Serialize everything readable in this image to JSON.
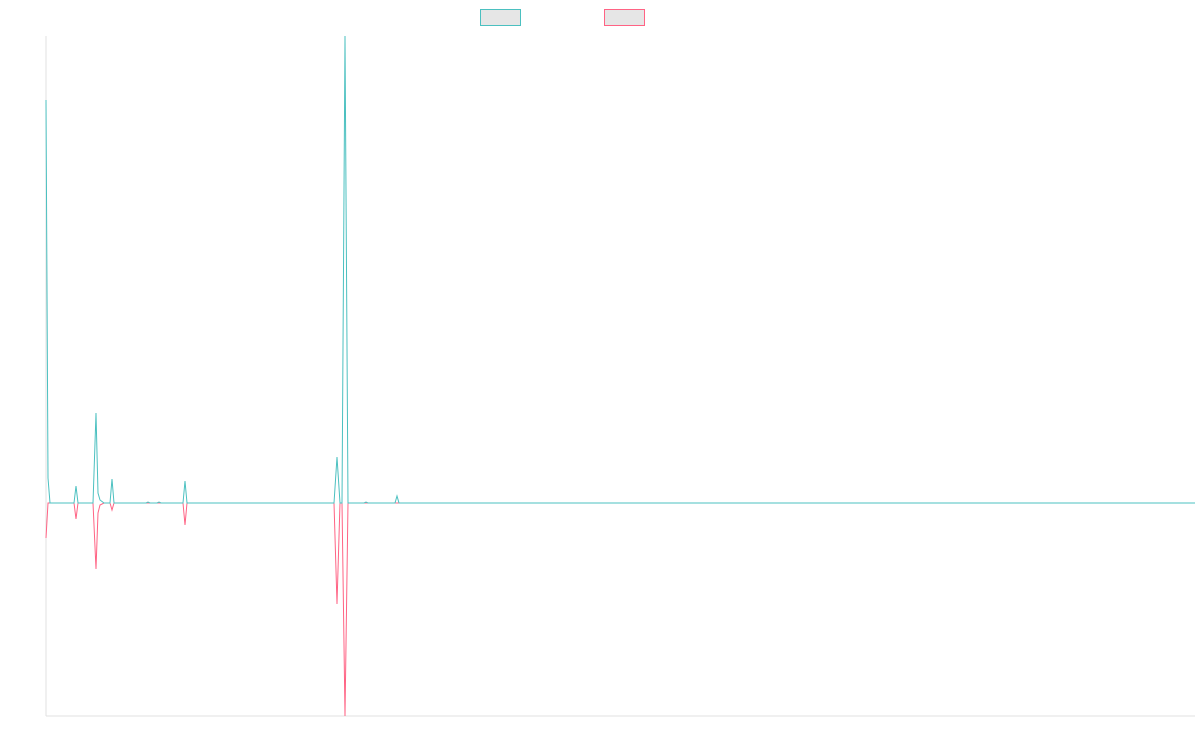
{
  "chart_data": {
    "type": "line",
    "xlim": [
      0,
      1149
    ],
    "ylim": [
      -213,
      467
    ],
    "series": [
      {
        "color": "#4bc0c0",
        "x": [
          0,
          2,
          4,
          28,
          30,
          32,
          47,
          50,
          52,
          54,
          58,
          64,
          66,
          68,
          100,
          102,
          104,
          111,
          113,
          115,
          137,
          139,
          141,
          288,
          291,
          294,
          296,
          299,
          302,
          318,
          320,
          322,
          349,
          351,
          353,
          1149
        ],
        "values": [
          403,
          25,
          0,
          0,
          17,
          0,
          0,
          90,
          10,
          3,
          0,
          0,
          24,
          0,
          0,
          1,
          0,
          0,
          1,
          0,
          0,
          22,
          0,
          0,
          46,
          0,
          0,
          467,
          0,
          0,
          1,
          0,
          0,
          7,
          0,
          0
        ]
      },
      {
        "color": "#ff6384",
        "x": [
          0,
          2,
          28,
          30,
          32,
          47,
          50,
          52,
          54,
          58,
          64,
          66,
          68,
          137,
          139,
          141,
          288,
          291,
          294,
          296,
          299,
          302,
          1149
        ],
        "values": [
          -35,
          0,
          0,
          -16,
          0,
          0,
          -66,
          -10,
          -2,
          0,
          0,
          -7,
          0,
          0,
          -22,
          0,
          0,
          -101,
          0,
          0,
          -213,
          0,
          0
        ]
      }
    ]
  }
}
